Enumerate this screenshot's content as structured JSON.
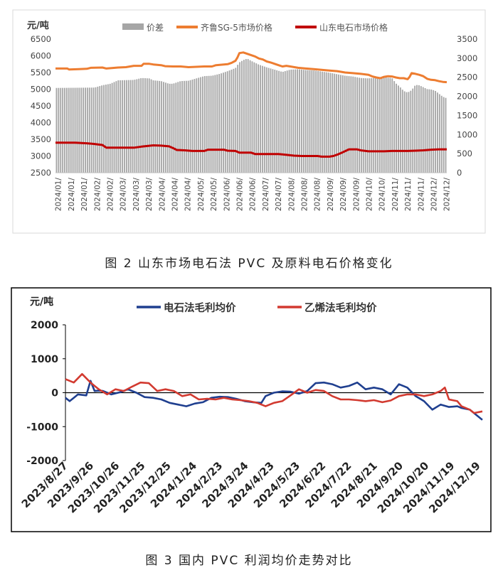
{
  "figure1": {
    "caption": "图 2 山东市场电石法 PVC 及原料电石价格变化",
    "chart_data": {
      "type": "bar+line",
      "unit_label": "元/吨",
      "legend": {
        "items": [
          {
            "name": "价差",
            "color": "#a6a6a6",
            "kind": "bar"
          },
          {
            "name": "齐鲁SG-5市场价格",
            "color": "#ed7d31",
            "kind": "line"
          },
          {
            "name": "山东电石市场价格",
            "color": "#c00000",
            "kind": "line"
          }
        ],
        "position": "top"
      },
      "left_axis": {
        "min": 2500,
        "max": 6500,
        "ticks": [
          "2500",
          "3000",
          "3500",
          "4000",
          "4500",
          "5000",
          "5500",
          "6000",
          "6500"
        ]
      },
      "right_axis": {
        "min": 0,
        "max": 3500,
        "ticks": [
          "0",
          "500",
          "1000",
          "1500",
          "2000",
          "2500",
          "3000",
          "3500"
        ]
      },
      "x_tick_label": "2024/01/",
      "x_ticks": [
        "2024/01/",
        "2024/01/",
        "2024/01/",
        "2024/02/",
        "2024/02/",
        "2024/03/",
        "2024/03/",
        "2024/03/",
        "2024/04/",
        "2024/04/",
        "2024/04/",
        "2024/05/",
        "2024/05/",
        "2024/06/",
        "2024/06/",
        "2024/06/",
        "2024/07/",
        "2024/07/",
        "2024/08/",
        "2024/08/",
        "2024/08/",
        "2024/09/",
        "2024/09/",
        "2024/09/",
        "2024/10/",
        "2024/10/",
        "2024/11/",
        "2024/11/",
        "2024/11/",
        "2024/12/",
        "2024/12/"
      ],
      "sg5_price": [
        [
          0,
          5620
        ],
        [
          0.03,
          5620
        ],
        [
          0.035,
          5590
        ],
        [
          0.06,
          5600
        ],
        [
          0.08,
          5610
        ],
        [
          0.09,
          5640
        ],
        [
          0.12,
          5650
        ],
        [
          0.13,
          5620
        ],
        [
          0.16,
          5650
        ],
        [
          0.18,
          5660
        ],
        [
          0.2,
          5700
        ],
        [
          0.22,
          5700
        ],
        [
          0.225,
          5760
        ],
        [
          0.24,
          5760
        ],
        [
          0.25,
          5740
        ],
        [
          0.27,
          5720
        ],
        [
          0.28,
          5690
        ],
        [
          0.3,
          5680
        ],
        [
          0.32,
          5680
        ],
        [
          0.34,
          5660
        ],
        [
          0.36,
          5670
        ],
        [
          0.38,
          5680
        ],
        [
          0.4,
          5680
        ],
        [
          0.41,
          5720
        ],
        [
          0.43,
          5740
        ],
        [
          0.44,
          5750
        ],
        [
          0.45,
          5790
        ],
        [
          0.46,
          5850
        ],
        [
          0.465,
          5950
        ],
        [
          0.47,
          6080
        ],
        [
          0.48,
          6100
        ],
        [
          0.49,
          6060
        ],
        [
          0.5,
          6020
        ],
        [
          0.51,
          5980
        ],
        [
          0.52,
          5920
        ],
        [
          0.53,
          5890
        ],
        [
          0.54,
          5830
        ],
        [
          0.55,
          5800
        ],
        [
          0.56,
          5760
        ],
        [
          0.57,
          5720
        ],
        [
          0.58,
          5680
        ],
        [
          0.59,
          5700
        ],
        [
          0.6,
          5680
        ],
        [
          0.62,
          5640
        ],
        [
          0.64,
          5620
        ],
        [
          0.66,
          5600
        ],
        [
          0.68,
          5580
        ],
        [
          0.7,
          5560
        ],
        [
          0.72,
          5540
        ],
        [
          0.74,
          5500
        ],
        [
          0.76,
          5480
        ],
        [
          0.78,
          5460
        ],
        [
          0.8,
          5430
        ],
        [
          0.81,
          5380
        ],
        [
          0.82,
          5350
        ],
        [
          0.83,
          5330
        ],
        [
          0.84,
          5370
        ],
        [
          0.85,
          5390
        ],
        [
          0.86,
          5380
        ],
        [
          0.87,
          5350
        ],
        [
          0.88,
          5330
        ],
        [
          0.89,
          5330
        ],
        [
          0.9,
          5300
        ],
        [
          0.905,
          5370
        ],
        [
          0.91,
          5480
        ],
        [
          0.92,
          5460
        ],
        [
          0.93,
          5430
        ],
        [
          0.94,
          5390
        ],
        [
          0.95,
          5310
        ],
        [
          0.96,
          5280
        ],
        [
          0.97,
          5270
        ],
        [
          0.98,
          5240
        ],
        [
          0.99,
          5220
        ],
        [
          1.0,
          5210
        ]
      ],
      "carbide_price": [
        [
          0,
          3400
        ],
        [
          0.05,
          3400
        ],
        [
          0.08,
          3380
        ],
        [
          0.1,
          3360
        ],
        [
          0.12,
          3330
        ],
        [
          0.13,
          3250
        ],
        [
          0.2,
          3250
        ],
        [
          0.22,
          3280
        ],
        [
          0.25,
          3320
        ],
        [
          0.27,
          3310
        ],
        [
          0.29,
          3290
        ],
        [
          0.3,
          3240
        ],
        [
          0.31,
          3180
        ],
        [
          0.33,
          3170
        ],
        [
          0.35,
          3150
        ],
        [
          0.37,
          3150
        ],
        [
          0.38,
          3150
        ],
        [
          0.39,
          3190
        ],
        [
          0.43,
          3190
        ],
        [
          0.44,
          3160
        ],
        [
          0.46,
          3150
        ],
        [
          0.47,
          3100
        ],
        [
          0.5,
          3100
        ],
        [
          0.51,
          3060
        ],
        [
          0.57,
          3060
        ],
        [
          0.58,
          3050
        ],
        [
          0.61,
          3010
        ],
        [
          0.63,
          3000
        ],
        [
          0.67,
          3000
        ],
        [
          0.68,
          2980
        ],
        [
          0.7,
          2980
        ],
        [
          0.71,
          3000
        ],
        [
          0.72,
          3040
        ],
        [
          0.73,
          3090
        ],
        [
          0.75,
          3200
        ],
        [
          0.77,
          3200
        ],
        [
          0.78,
          3170
        ],
        [
          0.8,
          3140
        ],
        [
          0.84,
          3140
        ],
        [
          0.86,
          3150
        ],
        [
          0.9,
          3150
        ],
        [
          0.92,
          3160
        ],
        [
          0.94,
          3170
        ],
        [
          0.96,
          3190
        ],
        [
          0.98,
          3200
        ],
        [
          1.0,
          3200
        ]
      ],
      "spread_scale": "right_axis",
      "spread_profile": [
        [
          0,
          2220
        ],
        [
          0.1,
          2230
        ],
        [
          0.12,
          2290
        ],
        [
          0.14,
          2330
        ],
        [
          0.16,
          2420
        ],
        [
          0.2,
          2430
        ],
        [
          0.22,
          2480
        ],
        [
          0.24,
          2470
        ],
        [
          0.25,
          2420
        ],
        [
          0.27,
          2400
        ],
        [
          0.29,
          2330
        ],
        [
          0.3,
          2330
        ],
        [
          0.32,
          2400
        ],
        [
          0.34,
          2410
        ],
        [
          0.36,
          2470
        ],
        [
          0.38,
          2530
        ],
        [
          0.4,
          2540
        ],
        [
          0.42,
          2590
        ],
        [
          0.44,
          2660
        ],
        [
          0.46,
          2740
        ],
        [
          0.47,
          2890
        ],
        [
          0.48,
          2950
        ],
        [
          0.49,
          2990
        ],
        [
          0.5,
          2930
        ],
        [
          0.52,
          2830
        ],
        [
          0.54,
          2760
        ],
        [
          0.56,
          2700
        ],
        [
          0.58,
          2640
        ],
        [
          0.6,
          2700
        ],
        [
          0.62,
          2710
        ],
        [
          0.64,
          2690
        ],
        [
          0.66,
          2680
        ],
        [
          0.68,
          2650
        ],
        [
          0.7,
          2620
        ],
        [
          0.72,
          2580
        ],
        [
          0.74,
          2540
        ],
        [
          0.76,
          2520
        ],
        [
          0.78,
          2480
        ],
        [
          0.8,
          2470
        ],
        [
          0.82,
          2490
        ],
        [
          0.84,
          2500
        ],
        [
          0.86,
          2480
        ],
        [
          0.87,
          2340
        ],
        [
          0.88,
          2250
        ],
        [
          0.89,
          2140
        ],
        [
          0.9,
          2100
        ],
        [
          0.91,
          2160
        ],
        [
          0.92,
          2300
        ],
        [
          0.93,
          2290
        ],
        [
          0.94,
          2240
        ],
        [
          0.95,
          2190
        ],
        [
          0.96,
          2180
        ],
        [
          0.97,
          2150
        ],
        [
          0.98,
          2070
        ],
        [
          0.99,
          1990
        ],
        [
          1.0,
          1950
        ]
      ]
    }
  },
  "figure2": {
    "caption": "图 3 国内 PVC 利润均价走势对比",
    "chart_data": {
      "type": "line",
      "unit_label": "元/吨",
      "legend": {
        "items": [
          {
            "name": "电石法毛利均价",
            "color": "#1f3f8f"
          },
          {
            "name": "乙烯法毛利均价",
            "color": "#d23a30"
          }
        ],
        "position": "top"
      },
      "y_axis": {
        "min": -2000,
        "max": 2000,
        "ticks": [
          "2000",
          "1000",
          "0",
          "-1000",
          "-2000"
        ]
      },
      "x_ticks": [
        "2023/8/27",
        "2023/9/26",
        "2023/10/26",
        "2023/11/25",
        "2023/12/25",
        "2024/1/24",
        "2024/2/23",
        "2024/3/24",
        "2024/4/23",
        "2024/5/23",
        "2024/6/22",
        "2024/7/22",
        "2024/8/21",
        "2024/9/20",
        "2024/10/20",
        "2024/11/19",
        "2024/12/19"
      ],
      "series": [
        {
          "name": "电石法毛利均价",
          "color": "#1f3f8f",
          "points": [
            [
              0,
              -150
            ],
            [
              0.01,
              -250
            ],
            [
              0.02,
              -150
            ],
            [
              0.03,
              -50
            ],
            [
              0.05,
              -80
            ],
            [
              0.06,
              350
            ],
            [
              0.07,
              50
            ],
            [
              0.08,
              60
            ],
            [
              0.09,
              50
            ],
            [
              0.1,
              0
            ],
            [
              0.11,
              -50
            ],
            [
              0.13,
              10
            ],
            [
              0.15,
              100
            ],
            [
              0.17,
              0
            ],
            [
              0.19,
              -130
            ],
            [
              0.21,
              -150
            ],
            [
              0.23,
              -200
            ],
            [
              0.25,
              -300
            ],
            [
              0.27,
              -350
            ],
            [
              0.29,
              -400
            ],
            [
              0.31,
              -320
            ],
            [
              0.33,
              -280
            ],
            [
              0.35,
              -150
            ],
            [
              0.37,
              -120
            ],
            [
              0.39,
              -130
            ],
            [
              0.41,
              -180
            ],
            [
              0.43,
              -250
            ],
            [
              0.45,
              -280
            ],
            [
              0.47,
              -300
            ],
            [
              0.48,
              -100
            ],
            [
              0.5,
              0
            ],
            [
              0.52,
              40
            ],
            [
              0.54,
              30
            ],
            [
              0.56,
              -30
            ],
            [
              0.58,
              50
            ],
            [
              0.6,
              280
            ],
            [
              0.62,
              300
            ],
            [
              0.64,
              250
            ],
            [
              0.66,
              150
            ],
            [
              0.68,
              200
            ],
            [
              0.7,
              300
            ],
            [
              0.72,
              100
            ],
            [
              0.74,
              150
            ],
            [
              0.76,
              100
            ],
            [
              0.78,
              -50
            ],
            [
              0.8,
              250
            ],
            [
              0.82,
              150
            ],
            [
              0.84,
              -100
            ],
            [
              0.86,
              -250
            ],
            [
              0.88,
              -500
            ],
            [
              0.9,
              -350
            ],
            [
              0.92,
              -420
            ],
            [
              0.94,
              -400
            ],
            [
              0.95,
              -450
            ],
            [
              0.97,
              -500
            ],
            [
              1.0,
              -800
            ]
          ]
        },
        {
          "name": "乙烯法毛利均价",
          "color": "#d23a30",
          "points": [
            [
              0,
              400
            ],
            [
              0.02,
              300
            ],
            [
              0.04,
              550
            ],
            [
              0.06,
              300
            ],
            [
              0.08,
              100
            ],
            [
              0.1,
              -50
            ],
            [
              0.12,
              100
            ],
            [
              0.14,
              50
            ],
            [
              0.16,
              180
            ],
            [
              0.18,
              300
            ],
            [
              0.2,
              280
            ],
            [
              0.22,
              50
            ],
            [
              0.24,
              100
            ],
            [
              0.26,
              50
            ],
            [
              0.28,
              -100
            ],
            [
              0.3,
              -50
            ],
            [
              0.32,
              -200
            ],
            [
              0.34,
              -180
            ],
            [
              0.36,
              -200
            ],
            [
              0.38,
              -150
            ],
            [
              0.4,
              -200
            ],
            [
              0.42,
              -220
            ],
            [
              0.44,
              -250
            ],
            [
              0.46,
              -300
            ],
            [
              0.48,
              -400
            ],
            [
              0.5,
              -300
            ],
            [
              0.52,
              -250
            ],
            [
              0.54,
              -80
            ],
            [
              0.56,
              100
            ],
            [
              0.58,
              0
            ],
            [
              0.6,
              80
            ],
            [
              0.62,
              50
            ],
            [
              0.64,
              -100
            ],
            [
              0.66,
              -200
            ],
            [
              0.68,
              -200
            ],
            [
              0.7,
              -220
            ],
            [
              0.72,
              -250
            ],
            [
              0.74,
              -220
            ],
            [
              0.76,
              -280
            ],
            [
              0.78,
              -230
            ],
            [
              0.8,
              -100
            ],
            [
              0.82,
              -50
            ],
            [
              0.84,
              -50
            ],
            [
              0.86,
              -100
            ],
            [
              0.88,
              -50
            ],
            [
              0.9,
              50
            ],
            [
              0.91,
              150
            ],
            [
              0.92,
              -200
            ],
            [
              0.94,
              -250
            ],
            [
              0.95,
              -400
            ],
            [
              0.97,
              -500
            ],
            [
              0.98,
              -600
            ],
            [
              1.0,
              -550
            ]
          ]
        }
      ]
    }
  }
}
